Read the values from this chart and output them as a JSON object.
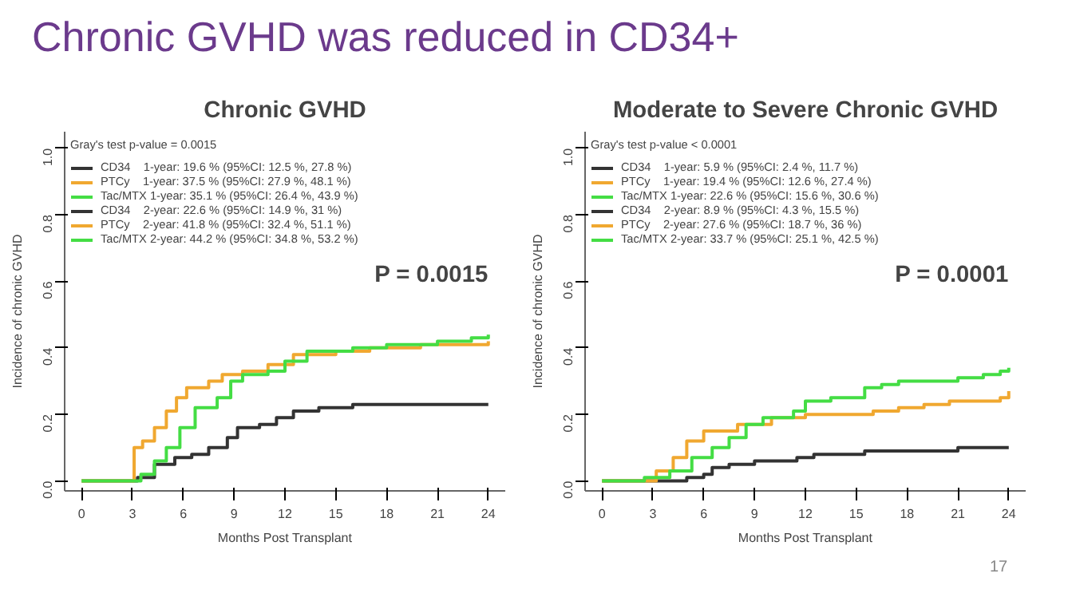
{
  "chart_data": [
    {
      "type": "step",
      "title": "Chronic GVHD",
      "xlabel": "Months Post Transplant",
      "ylabel": "Incidence of chronic GVHD",
      "legend_title": "Gray's test p-value = 0.0015",
      "legend": "top left",
      "grid": false,
      "xlim": [
        -1,
        25
      ],
      "ylim": [
        -0.03,
        1.05
      ],
      "xticks": [
        0,
        3,
        6,
        9,
        12,
        15,
        18,
        21,
        24
      ],
      "yticks": [
        {
          "value": 0,
          "label": "0.0"
        },
        {
          "value": 0.2,
          "label": "0.2"
        },
        {
          "value": 0.4,
          "label": "0.4"
        },
        {
          "value": 0.6,
          "label": "0.6"
        },
        {
          "value": 0.8,
          "label": "0.8"
        },
        {
          "value": 1,
          "label": "1.0"
        }
      ],
      "series": [
        {
          "name": "CD34    1-year: 19.6 % (95%CI: 12.5 %, 27.8 %)",
          "color": "#333333",
          "x": [
            0,
            3.3,
            4.3,
            5.5,
            6.5,
            7.5,
            8.6,
            9.2,
            10.5,
            11.5,
            12.5,
            14,
            16,
            24
          ],
          "values": [
            0,
            0.01,
            0.05,
            0.07,
            0.08,
            0.1,
            0.13,
            0.16,
            0.17,
            0.19,
            0.21,
            0.22,
            0.23,
            0.23
          ]
        },
        {
          "name": "PTCy    1-year: 37.5 % (95%CI: 27.9 %, 48.1 %)",
          "color": "#f0a830",
          "x": [
            0,
            3.1,
            3.6,
            4.3,
            5,
            5.6,
            6.2,
            7.5,
            8.3,
            9.5,
            11,
            12.5,
            15,
            17,
            20,
            24
          ],
          "values": [
            0,
            0.1,
            0.12,
            0.16,
            0.21,
            0.25,
            0.28,
            0.3,
            0.32,
            0.33,
            0.35,
            0.38,
            0.39,
            0.4,
            0.41,
            0.42
          ]
        },
        {
          "name": "Tac/MTX 1-year: 35.1 % (95%CI: 26.4 %, 43.9 %)",
          "color": "#44dd44",
          "x": [
            0,
            3.5,
            4.3,
            5,
            5.8,
            6.7,
            8,
            8.8,
            9.5,
            11,
            12,
            13.3,
            16,
            18,
            21,
            23,
            24
          ],
          "values": [
            0,
            0.02,
            0.06,
            0.1,
            0.16,
            0.22,
            0.25,
            0.3,
            0.32,
            0.33,
            0.36,
            0.39,
            0.4,
            0.41,
            0.42,
            0.43,
            0.44
          ]
        }
      ],
      "annotations": [
        "P = 0.0015",
        "CD34    2-year: 22.6 % (95%CI: 14.9 %, 31 %)",
        "PTCy    2-year: 41.8 % (95%CI: 32.4 %, 51.1 %)",
        "Tac/MTX 2-year: 44.2 % (95%CI: 34.8 %, 53.2 %)",
        "Chronic GVHD was reduced in CD34+"
      ]
    },
    {
      "type": "step",
      "title": "Moderate to Severe Chronic GVHD",
      "xlabel": "Months Post Transplant",
      "ylabel": "Incidence of chronic GVHD",
      "legend_title": "Gray's test p-value < 0.0001",
      "legend": "top left",
      "grid": false,
      "xlim": [
        -1,
        25
      ],
      "ylim": [
        -0.03,
        1.05
      ],
      "xticks": [
        0,
        3,
        6,
        9,
        12,
        15,
        18,
        21,
        24
      ],
      "yticks": [
        {
          "value": 0,
          "label": "0.0"
        },
        {
          "value": 0.2,
          "label": "0.2"
        },
        {
          "value": 0.4,
          "label": "0.4"
        },
        {
          "value": 0.6,
          "label": "0.6"
        },
        {
          "value": 0.8,
          "label": "0.8"
        },
        {
          "value": 1,
          "label": "1.0"
        }
      ],
      "series": [
        {
          "name": "CD34    1-year: 5.9 % (95%CI: 2.4 %, 11.7 %)",
          "color": "#333333",
          "x": [
            0,
            5,
            6,
            6.5,
            7.5,
            9,
            11.5,
            12.5,
            15.5,
            21,
            24
          ],
          "values": [
            0,
            0.01,
            0.02,
            0.04,
            0.05,
            0.06,
            0.07,
            0.08,
            0.09,
            0.1,
            0.1
          ]
        },
        {
          "name": "PTCy    1-year: 19.4 % (95%CI: 12.6 %, 27.4 %)",
          "color": "#f0a830",
          "x": [
            0,
            3.2,
            4.2,
            5,
            6,
            8,
            10,
            12,
            16,
            17.5,
            19,
            20.5,
            23.5,
            24
          ],
          "values": [
            0,
            0.03,
            0.07,
            0.12,
            0.15,
            0.17,
            0.19,
            0.2,
            0.21,
            0.22,
            0.23,
            0.24,
            0.25,
            0.27
          ]
        },
        {
          "name": "Tac/MTX 1-year: 22.6 % (95%CI: 15.6 %, 30.6 %)",
          "color": "#44dd44",
          "x": [
            0,
            2.5,
            4,
            5.3,
            6.5,
            7.5,
            8.5,
            9.5,
            11.3,
            12,
            13.5,
            15.5,
            16.5,
            17.5,
            21,
            22.5,
            23.5,
            24
          ],
          "values": [
            0,
            0.01,
            0.03,
            0.07,
            0.1,
            0.13,
            0.17,
            0.19,
            0.21,
            0.24,
            0.25,
            0.28,
            0.29,
            0.3,
            0.31,
            0.32,
            0.33,
            0.34
          ]
        }
      ],
      "annotations": [
        "P = 0.0001",
        "CD34    2-year: 8.9 % (95%CI: 4.3 %, 15.5 %)",
        "PTCy    2-year: 27.6 % (95%CI: 18.7 %, 36 %)",
        "Tac/MTX 2-year: 33.7 % (95%CI: 25.1 %, 42.5 %)",
        "17"
      ]
    }
  ]
}
